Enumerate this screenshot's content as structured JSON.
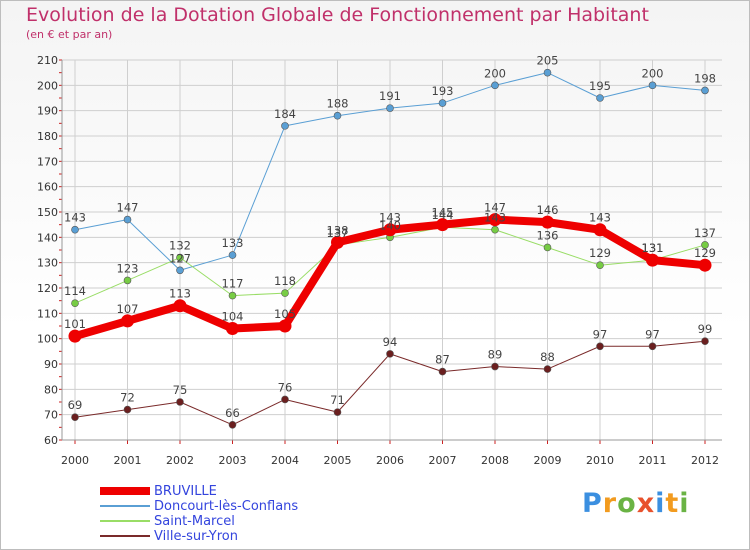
{
  "title": "Evolution de la Dotation Globale de Fonctionnement par Habitant",
  "subtitle": "(en € et par an)",
  "logo": {
    "text": "Proxiti",
    "letters": [
      {
        "ch": "P",
        "color": "#3b8fe0"
      },
      {
        "ch": "r",
        "color": "#f29b1f"
      },
      {
        "ch": "o",
        "color": "#6ab344"
      },
      {
        "ch": "x",
        "color": "#e8522d"
      },
      {
        "ch": "i",
        "color": "#3b8fe0"
      },
      {
        "ch": "t",
        "color": "#f29b1f"
      },
      {
        "ch": "i",
        "color": "#6ab344"
      }
    ]
  },
  "chart_data": {
    "type": "line",
    "x": [
      "2000",
      "2001",
      "2002",
      "2003",
      "2004",
      "2005",
      "2006",
      "2007",
      "2008",
      "2009",
      "2010",
      "2011",
      "2012"
    ],
    "ylim": [
      60,
      210
    ],
    "yticks": [
      60,
      70,
      80,
      90,
      100,
      110,
      120,
      130,
      140,
      150,
      160,
      170,
      180,
      190,
      200,
      210
    ],
    "grid": true,
    "legend_position": "bottom-left",
    "series": [
      {
        "name": "Doncourt-lès-Conflans",
        "color": "#5a9fd4",
        "marker": "#5a9fd4",
        "width": 1,
        "values": [
          143,
          147,
          127,
          133,
          184,
          188,
          191,
          193,
          200,
          205,
          195,
          200,
          198
        ]
      },
      {
        "name": "Saint-Marcel",
        "color": "#99dd66",
        "marker": "#77cc44",
        "width": 1,
        "values": [
          114,
          123,
          132,
          117,
          118,
          137,
          140,
          144,
          143,
          136,
          129,
          131,
          137
        ]
      },
      {
        "name": "Ville-sur-Yron",
        "color": "#7a2a2a",
        "marker": "#6b1f1f",
        "width": 1,
        "values": [
          69,
          72,
          75,
          66,
          76,
          71,
          94,
          87,
          89,
          88,
          97,
          97,
          99
        ]
      },
      {
        "name": "BRUVILLE",
        "color": "#ee0000",
        "marker": "#ee0000",
        "width": 8,
        "values": [
          101,
          107,
          113,
          104,
          105,
          138,
          143,
          145,
          147,
          146,
          143,
          131,
          129
        ]
      }
    ],
    "legend_order": [
      "BRUVILLE",
      "Doncourt-lès-Conflans",
      "Saint-Marcel",
      "Ville-sur-Yron"
    ]
  }
}
